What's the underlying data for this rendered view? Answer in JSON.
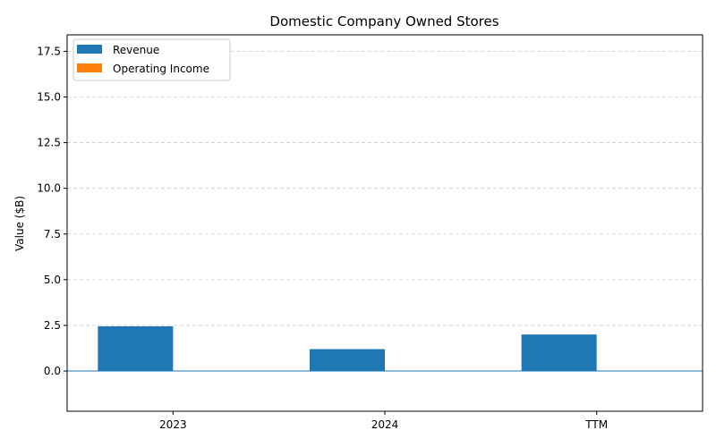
{
  "chart_data": {
    "type": "bar",
    "title": "Domestic Company Owned Stores",
    "xlabel": "",
    "ylabel": "Value ($B)",
    "categories": [
      "2023",
      "2024",
      "TTM"
    ],
    "series": [
      {
        "name": "Revenue",
        "values": [
          2.45,
          1.2,
          2.0
        ],
        "color": "#1f77b4"
      },
      {
        "name": "Operating Income",
        "values": [
          0.0,
          0.0,
          0.0
        ],
        "color": "#ff7f0e"
      }
    ],
    "ylim": [
      -2.2,
      18.4
    ],
    "yticks": [
      "0.0",
      "2.5",
      "5.0",
      "7.5",
      "10.0",
      "12.5",
      "15.0",
      "17.5"
    ],
    "grid": true,
    "legend_position": "top-left"
  }
}
